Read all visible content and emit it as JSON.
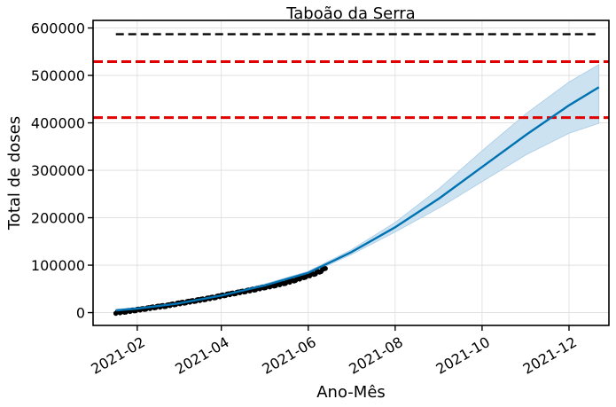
{
  "chart_data": {
    "type": "line",
    "title": "Taboão da Serra",
    "xlabel": "Ano-Mês",
    "ylabel": "Total de doses",
    "x_range": [
      "2021-01-01",
      "2021-12-29"
    ],
    "ylim": [
      -27000,
      616000
    ],
    "grid": true,
    "x_ticks": [
      {
        "date": "2021-02-01",
        "label": "2021-02"
      },
      {
        "date": "2021-04-01",
        "label": "2021-04"
      },
      {
        "date": "2021-06-01",
        "label": "2021-06"
      },
      {
        "date": "2021-08-01",
        "label": "2021-08"
      },
      {
        "date": "2021-10-01",
        "label": "2021-10"
      },
      {
        "date": "2021-12-01",
        "label": "2021-12"
      }
    ],
    "y_ticks": [
      {
        "value": 0,
        "label": "0"
      },
      {
        "value": 100000,
        "label": "100000"
      },
      {
        "value": 200000,
        "label": "200000"
      },
      {
        "value": 300000,
        "label": "300000"
      },
      {
        "value": 400000,
        "label": "400000"
      },
      {
        "value": 500000,
        "label": "500000"
      },
      {
        "value": 600000,
        "label": "600000"
      }
    ],
    "reference_lines": [
      {
        "value": 587000,
        "color": "#000000",
        "style": "dashed",
        "x_start": "2021-01-17",
        "x_end": "2021-12-22"
      },
      {
        "value": 529000,
        "color": "#e00000",
        "style": "dashed"
      },
      {
        "value": 411000,
        "color": "#e00000",
        "style": "dashed"
      }
    ],
    "observed": {
      "color": "#000000",
      "points": [
        [
          "2021-01-17",
          0
        ],
        [
          "2021-01-24",
          2500
        ],
        [
          "2021-01-31",
          5500
        ],
        [
          "2021-02-07",
          8500
        ],
        [
          "2021-02-14",
          12000
        ],
        [
          "2021-02-21",
          14500
        ],
        [
          "2021-02-28",
          18500
        ],
        [
          "2021-03-07",
          22000
        ],
        [
          "2021-03-14",
          25500
        ],
        [
          "2021-03-21",
          29000
        ],
        [
          "2021-03-28",
          33000
        ],
        [
          "2021-04-04",
          37500
        ],
        [
          "2021-04-11",
          41500
        ],
        [
          "2021-04-18",
          45500
        ],
        [
          "2021-04-25",
          49500
        ],
        [
          "2021-05-02",
          54000
        ],
        [
          "2021-05-09",
          58000
        ],
        [
          "2021-05-16",
          63000
        ],
        [
          "2021-05-23",
          69000
        ],
        [
          "2021-05-30",
          76000
        ],
        [
          "2021-06-06",
          83000
        ],
        [
          "2021-06-10",
          88000
        ],
        [
          "2021-06-13",
          93000
        ]
      ]
    },
    "forecast": {
      "color": "#0072b2",
      "band_color": "#cce2f1",
      "points": [
        [
          "2021-01-17",
          4500,
          2000,
          7000
        ],
        [
          "2021-02-01",
          8500,
          6000,
          11000
        ],
        [
          "2021-03-01",
          19000,
          16500,
          21500
        ],
        [
          "2021-04-01",
          36000,
          33500,
          38500
        ],
        [
          "2021-05-01",
          57000,
          54000,
          60000
        ],
        [
          "2021-06-01",
          84000,
          81000,
          87000
        ],
        [
          "2021-07-01",
          127000,
          122000,
          132000
        ],
        [
          "2021-08-01",
          180000,
          170000,
          190000
        ],
        [
          "2021-09-01",
          241000,
          221000,
          262000
        ],
        [
          "2021-10-01",
          307000,
          276000,
          341000
        ],
        [
          "2021-11-01",
          375000,
          333000,
          420000
        ],
        [
          "2021-12-01",
          437000,
          378000,
          486000
        ],
        [
          "2021-12-22",
          475000,
          399000,
          523000
        ]
      ]
    }
  }
}
